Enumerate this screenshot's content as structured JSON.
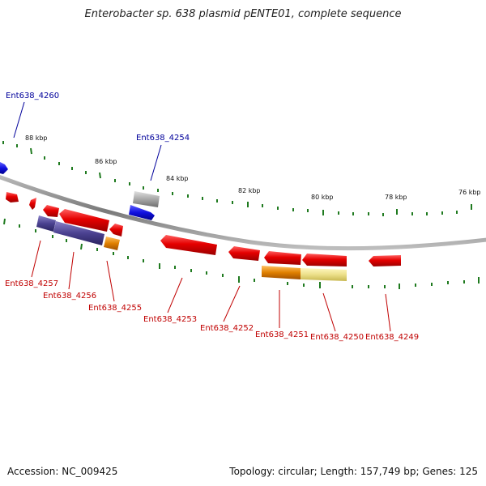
{
  "title": "Enterobacter sp. 638 plasmid pENTE01, complete sequence",
  "footer": {
    "accession": "Accession: NC_009425",
    "summary": "Topology: circular; Length: 157,749 bp; Genes: 125"
  },
  "colors": {
    "backbone": "#8a8a8a",
    "tick": "#1f7a1f",
    "forward_label": "#00009b",
    "reverse_label": "#c00000",
    "cds_red": "#e50000",
    "cds_blue": "#1010e0",
    "cds_gray": "#a8a8a8",
    "cds_purple": "#4a4190",
    "cds_orange": "#e08000",
    "cds_yellow": "#ece08a"
  },
  "scale_labels": [
    "88 kbp",
    "86 kbp",
    "84 kbp",
    "82 kbp",
    "80 kbp",
    "78 kbp",
    "76 kbp"
  ],
  "forward_labels": [
    "Ent638_4260",
    "Ent638_4254"
  ],
  "reverse_labels": [
    "Ent638_4257",
    "Ent638_4256",
    "Ent638_4255",
    "Ent638_4253",
    "Ent638_4252",
    "Ent638_4251",
    "Ent638_4250",
    "Ent638_4249"
  ]
}
